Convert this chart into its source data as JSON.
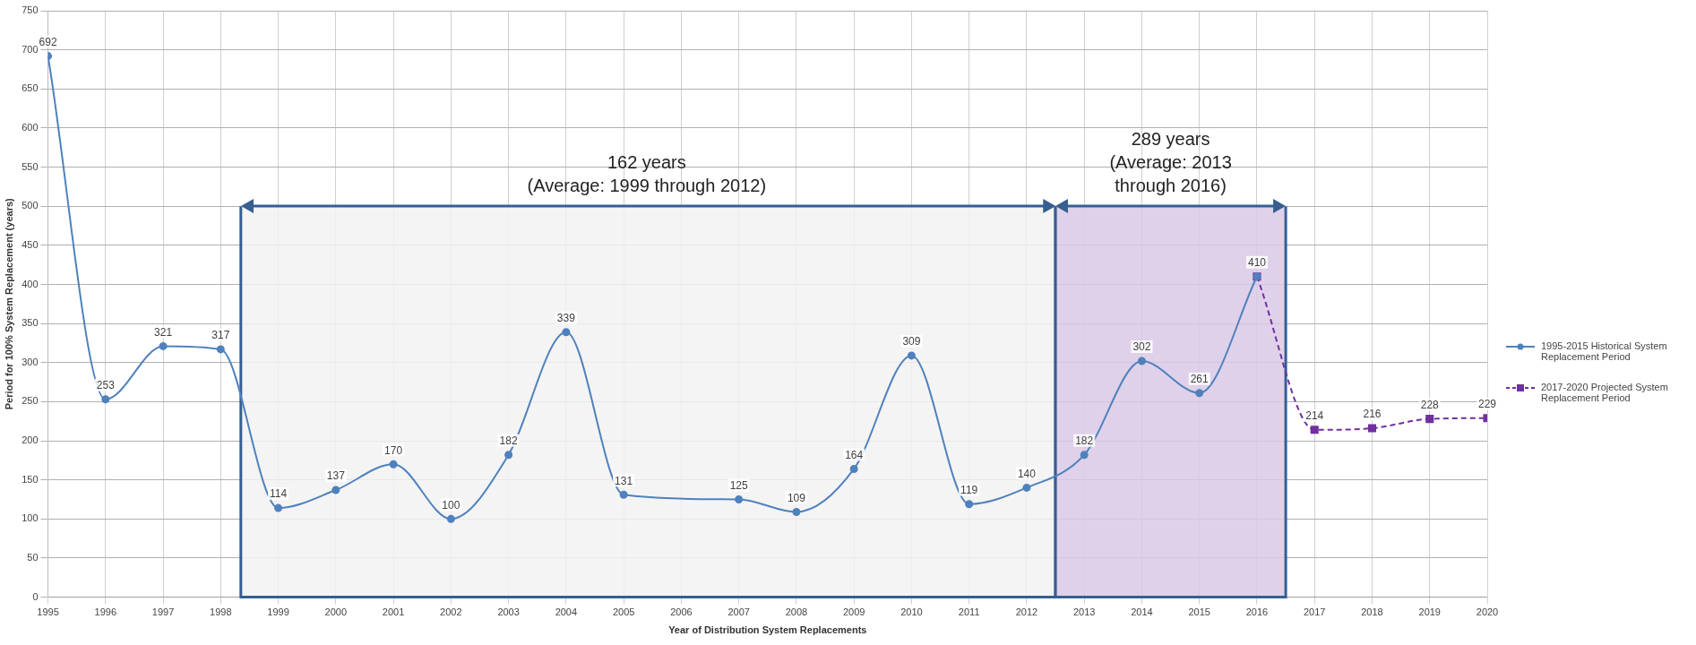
{
  "chart_data": {
    "type": "line",
    "xlabel": "Year of Distribution System Replacements",
    "ylabel": "Period for 100% System Replacement (years)",
    "xlim": [
      1995,
      2020
    ],
    "xticks": [
      1995,
      1996,
      1997,
      1998,
      1999,
      2000,
      2001,
      2002,
      2003,
      2004,
      2005,
      2006,
      2007,
      2008,
      2009,
      2010,
      2011,
      2012,
      2013,
      2014,
      2015,
      2016,
      2017,
      2018,
      2019,
      2020
    ],
    "ylim": [
      0,
      750
    ],
    "yticks": [
      0,
      50,
      100,
      150,
      200,
      250,
      300,
      350,
      400,
      450,
      500,
      550,
      600,
      650,
      700,
      750
    ],
    "grid": true,
    "legend": "right",
    "series": [
      {
        "name": "1995-2015 Historical System Replacement Period",
        "color": "#4f81bd",
        "marker": "circle",
        "line_style": "solid",
        "x": [
          1995,
          1996,
          1997,
          1998,
          1999,
          2000,
          2001,
          2002,
          2003,
          2004,
          2005,
          2006,
          2007,
          2008,
          2009,
          2010,
          2011,
          2012,
          2013,
          2014,
          2015,
          2016
        ],
        "values": [
          692,
          253,
          321,
          317,
          114,
          137,
          170,
          100,
          182,
          339,
          131,
          null,
          125,
          109,
          164,
          309,
          119,
          140,
          182,
          302,
          261,
          410
        ],
        "value_labels": [
          "692",
          "253",
          "321",
          "317",
          "114",
          "137",
          "170",
          "100",
          "182",
          "339",
          "131",
          null,
          "125",
          "109",
          "164",
          "309",
          "119",
          "140",
          "182",
          "302",
          "261",
          "410"
        ]
      },
      {
        "name": "2017-2020 Projected System Replacement Period",
        "color": "#7030a0",
        "marker": "square",
        "line_style": "dashed",
        "x": [
          2016,
          2017,
          2018,
          2019,
          2020
        ],
        "values": [
          410,
          214,
          216,
          228,
          229
        ],
        "value_labels": [
          null,
          "214",
          "216",
          "228",
          "229"
        ]
      }
    ],
    "bands": [
      {
        "axis": "x",
        "from": 1998.35,
        "to": 2012.5,
        "color": "#f2f2f2"
      },
      {
        "axis": "x",
        "from": 2012.5,
        "to": 2016.5,
        "color": "#d9c9e6"
      }
    ],
    "annotations": [
      {
        "text": "162 years\n(Average: 1999 through 2012)",
        "x": 2005.4,
        "y": 500
      },
      {
        "text": "289 years\n(Average: 2013\nthrough 2016)",
        "x": 2014.5,
        "y": 500
      }
    ]
  }
}
